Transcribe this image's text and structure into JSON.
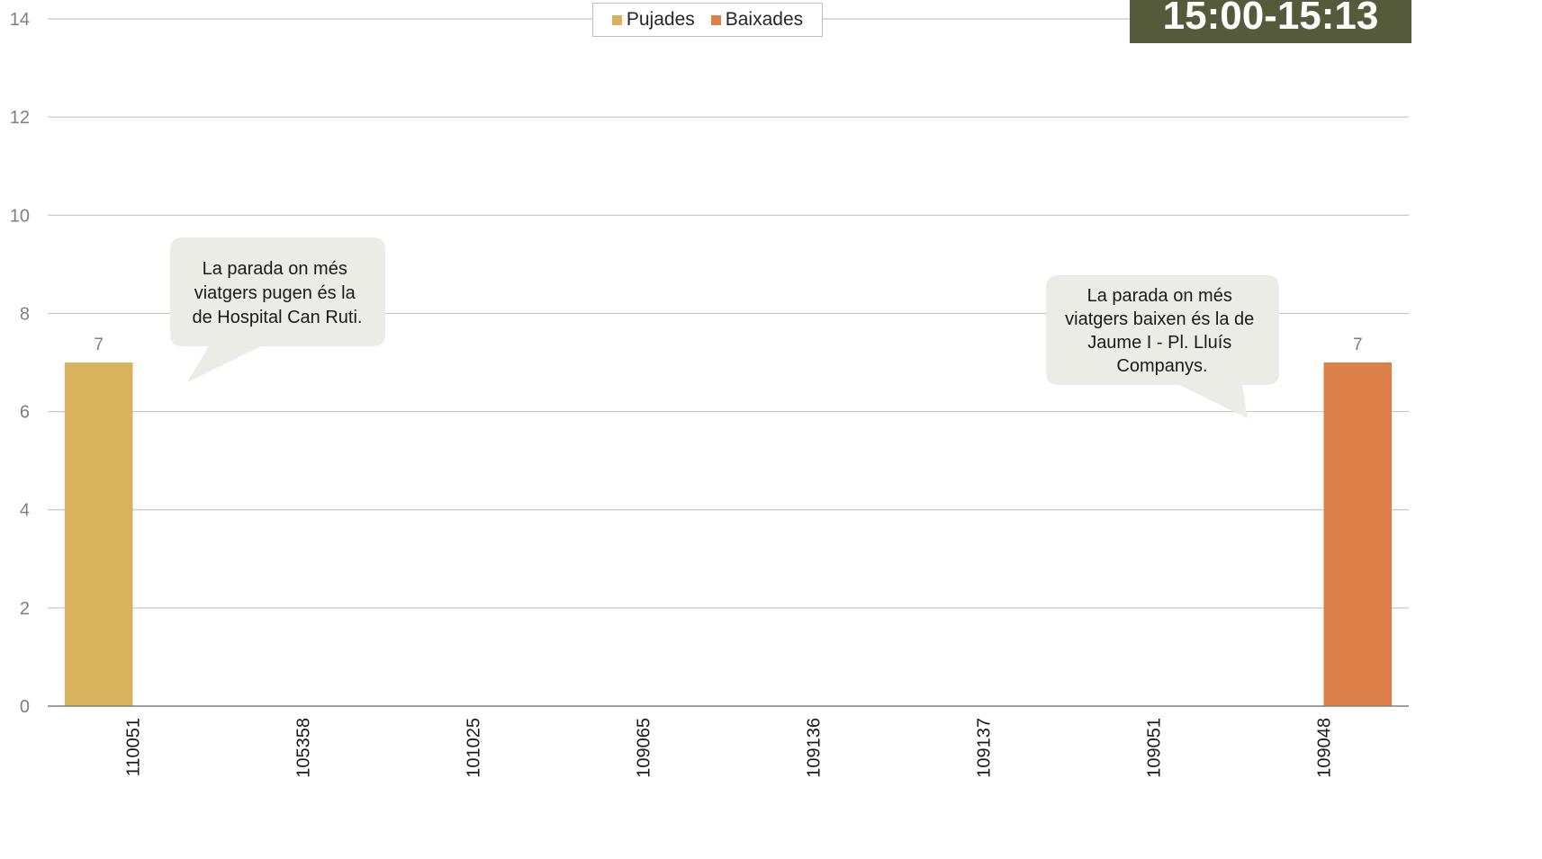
{
  "time_range": "15:00-15:13",
  "legend": [
    {
      "label": "Pujades",
      "color": "#d8b25c"
    },
    {
      "label": "Baixades",
      "color": "#dd7f49"
    }
  ],
  "annotations": [
    {
      "lines": [
        "La parada on més",
        "viatgers pugen és la",
        "de Hospital Can Ruti."
      ]
    },
    {
      "lines": [
        "La parada on més",
        "viatgers baixen és la de",
        "Jaume I - Pl. Lluís",
        "Companys."
      ]
    }
  ],
  "chart_data": {
    "type": "bar",
    "categories": [
      "110051",
      "105358",
      "101025",
      "109065",
      "109136",
      "109137",
      "109051",
      "109048"
    ],
    "series": [
      {
        "name": "Pujades",
        "color": "#d8b25c",
        "values": [
          7,
          0,
          0,
          0,
          0,
          0,
          0,
          0
        ]
      },
      {
        "name": "Baixades",
        "color": "#dd7f49",
        "values": [
          0,
          0,
          0,
          0,
          0,
          0,
          0,
          7
        ]
      }
    ],
    "data_labels": [
      {
        "category": "110051",
        "series": "Pujades",
        "value": 7
      },
      {
        "category": "109048",
        "series": "Baixades",
        "value": 7
      }
    ],
    "ylim": [
      0,
      14
    ],
    "yticks": [
      0,
      2,
      4,
      6,
      8,
      10,
      12,
      14
    ],
    "grid": true,
    "legend_position": "top"
  }
}
